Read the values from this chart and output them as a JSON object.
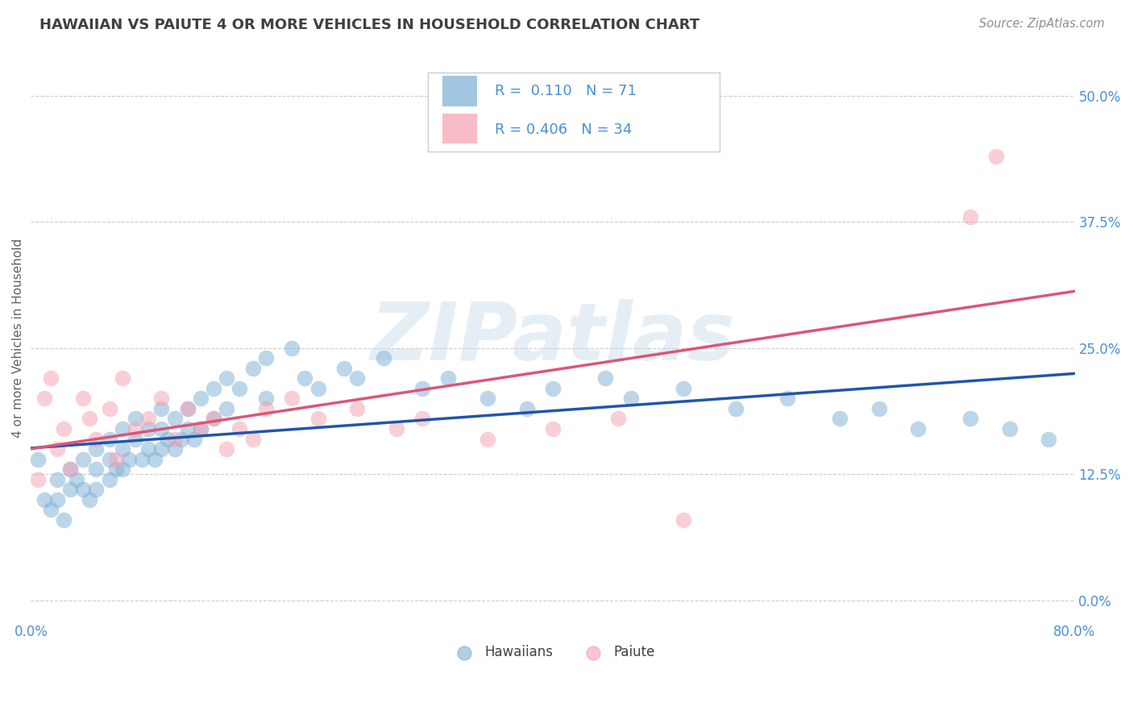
{
  "title": "HAWAIIAN VS PAIUTE 4 OR MORE VEHICLES IN HOUSEHOLD CORRELATION CHART",
  "source": "Source: ZipAtlas.com",
  "ylabel": "4 or more Vehicles in Household",
  "x_range": [
    0.0,
    0.8
  ],
  "y_range": [
    -0.02,
    0.54
  ],
  "y_ticks": [
    0.0,
    0.125,
    0.25,
    0.375,
    0.5
  ],
  "y_tick_labels": [
    "0.0%",
    "12.5%",
    "25.0%",
    "37.5%",
    "50.0%"
  ],
  "x_ticks": [
    0.0,
    0.1,
    0.2,
    0.3,
    0.4,
    0.5,
    0.6,
    0.7,
    0.8
  ],
  "x_tick_labels_show": [
    "0.0%",
    "",
    "",
    "",
    "",
    "",
    "",
    "",
    "80.0%"
  ],
  "hawaiians_color": "#7bafd4",
  "paiute_color": "#f4a0b0",
  "hawaiians_line_color": "#2255aa",
  "paiute_line_color": "#dd5577",
  "hawaiians_x": [
    0.005,
    0.01,
    0.015,
    0.02,
    0.02,
    0.025,
    0.03,
    0.03,
    0.035,
    0.04,
    0.04,
    0.045,
    0.05,
    0.05,
    0.05,
    0.06,
    0.06,
    0.06,
    0.065,
    0.07,
    0.07,
    0.07,
    0.075,
    0.08,
    0.08,
    0.085,
    0.09,
    0.09,
    0.095,
    0.1,
    0.1,
    0.1,
    0.105,
    0.11,
    0.11,
    0.115,
    0.12,
    0.12,
    0.125,
    0.13,
    0.13,
    0.14,
    0.14,
    0.15,
    0.15,
    0.16,
    0.17,
    0.18,
    0.18,
    0.2,
    0.21,
    0.22,
    0.24,
    0.25,
    0.27,
    0.3,
    0.32,
    0.35,
    0.38,
    0.4,
    0.44,
    0.46,
    0.5,
    0.54,
    0.58,
    0.62,
    0.65,
    0.68,
    0.72,
    0.75,
    0.78
  ],
  "hawaiians_y": [
    0.14,
    0.1,
    0.09,
    0.12,
    0.1,
    0.08,
    0.13,
    0.11,
    0.12,
    0.14,
    0.11,
    0.1,
    0.15,
    0.13,
    0.11,
    0.16,
    0.14,
    0.12,
    0.13,
    0.17,
    0.15,
    0.13,
    0.14,
    0.18,
    0.16,
    0.14,
    0.17,
    0.15,
    0.14,
    0.19,
    0.17,
    0.15,
    0.16,
    0.18,
    0.15,
    0.16,
    0.19,
    0.17,
    0.16,
    0.2,
    0.17,
    0.21,
    0.18,
    0.22,
    0.19,
    0.21,
    0.23,
    0.24,
    0.2,
    0.25,
    0.22,
    0.21,
    0.23,
    0.22,
    0.24,
    0.21,
    0.22,
    0.2,
    0.19,
    0.21,
    0.22,
    0.2,
    0.21,
    0.19,
    0.2,
    0.18,
    0.19,
    0.17,
    0.18,
    0.17,
    0.16
  ],
  "paiute_x": [
    0.005,
    0.01,
    0.015,
    0.02,
    0.025,
    0.03,
    0.04,
    0.045,
    0.05,
    0.06,
    0.065,
    0.07,
    0.08,
    0.09,
    0.1,
    0.11,
    0.12,
    0.13,
    0.14,
    0.15,
    0.16,
    0.17,
    0.18,
    0.2,
    0.22,
    0.25,
    0.28,
    0.3,
    0.35,
    0.4,
    0.45,
    0.5,
    0.72,
    0.74
  ],
  "paiute_y": [
    0.12,
    0.2,
    0.22,
    0.15,
    0.17,
    0.13,
    0.2,
    0.18,
    0.16,
    0.19,
    0.14,
    0.22,
    0.17,
    0.18,
    0.2,
    0.16,
    0.19,
    0.17,
    0.18,
    0.15,
    0.17,
    0.16,
    0.19,
    0.2,
    0.18,
    0.19,
    0.17,
    0.18,
    0.16,
    0.17,
    0.18,
    0.08,
    0.38,
    0.44
  ],
  "watermark_text": "ZIPatlas",
  "background_color": "#ffffff",
  "grid_color": "#cccccc",
  "title_color": "#404040",
  "axis_tick_color": "#4a90d9",
  "hawaiians_R": 0.11,
  "paiute_R": 0.406,
  "hawaiians_N": 71,
  "paiute_N": 34,
  "legend_hawaiians_label": "R =  0.110   N = 71",
  "legend_paiute_label": "R = 0.406   N = 34",
  "bottom_legend_hawaiians": "Hawaiians",
  "bottom_legend_paiute": "Paiute"
}
